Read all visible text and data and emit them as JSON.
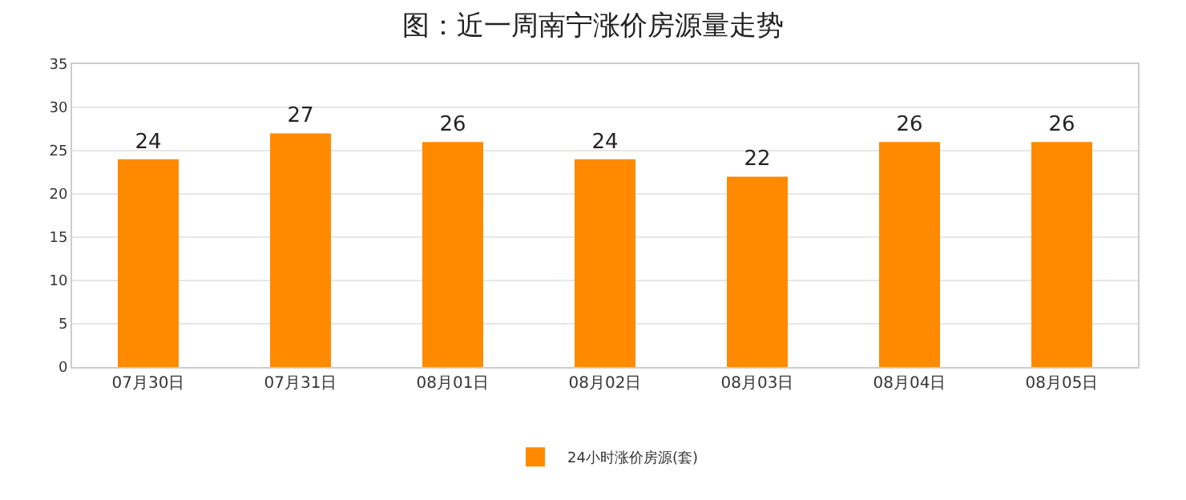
{
  "chart_data": {
    "type": "bar",
    "title": "图：近一周南宁涨价房源量走势",
    "categories": [
      "07月30日",
      "07月31日",
      "08月01日",
      "08月02日",
      "08月03日",
      "08月04日",
      "08月05日"
    ],
    "series": [
      {
        "name": "24小时涨价房源(套)",
        "color": "#ff8a00",
        "values": [
          24,
          27,
          26,
          24,
          22,
          26,
          26
        ]
      }
    ],
    "ylim": [
      0,
      35
    ],
    "yticks": [
      0,
      5,
      10,
      15,
      20,
      25,
      30,
      35
    ],
    "grid": "y",
    "legend": "bottom",
    "data_labels": true
  }
}
